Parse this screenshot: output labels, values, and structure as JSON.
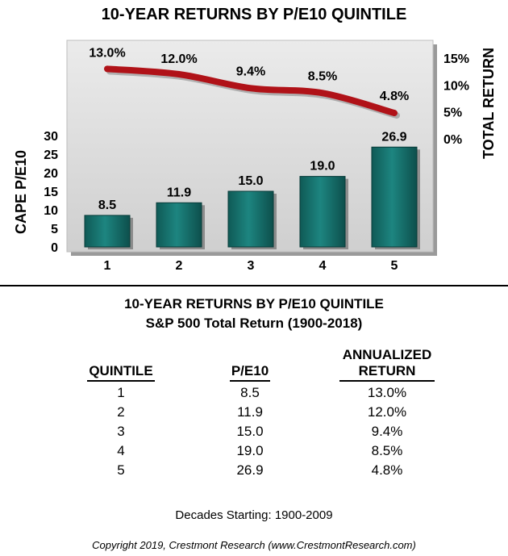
{
  "chart_data": {
    "type": "bar+line",
    "title": "10-YEAR RETURNS BY P/E10 QUINTILE",
    "categories": [
      "1",
      "2",
      "3",
      "4",
      "5"
    ],
    "series": [
      {
        "name": "",
        "kind": "bar",
        "axis": "left",
        "values": [
          8.5,
          11.9,
          15.0,
          19.0,
          26.9
        ],
        "labels": [
          "8.5",
          "11.9",
          "15.0",
          "19.0",
          "26.9"
        ]
      },
      {
        "name": "",
        "kind": "line",
        "axis": "right",
        "values": [
          13.0,
          12.0,
          9.4,
          8.5,
          4.8
        ],
        "labels": [
          "13.0%",
          "12.0%",
          "9.4%",
          "8.5%",
          "4.8%"
        ]
      }
    ],
    "ylabel": "CAPE P/E10",
    "y2label": "TOTAL RETURN",
    "ylim": [
      0,
      30
    ],
    "yticks": [
      "0",
      "5",
      "10",
      "15",
      "20",
      "25",
      "30"
    ],
    "y2lim": [
      0,
      15
    ],
    "y2ticks": [
      "0%",
      "5%",
      "10%",
      "15%"
    ],
    "colors": {
      "bar": "#1a7873",
      "bar_dark": "#0d4f4c",
      "line": "#b01218",
      "panel": "#d9d9d9"
    }
  },
  "table": {
    "title": "10-YEAR RETURNS BY P/E10 QUINTILE",
    "subtitle": "S&P 500 Total Return (1900-2018)",
    "headers": {
      "quintile": "QUINTILE",
      "pe10": "P/E10",
      "annualized_line1": "ANNUALIZED",
      "annualized_line2": "RETURN"
    },
    "rows": [
      [
        "1",
        "8.5",
        "13.0%"
      ],
      [
        "2",
        "11.9",
        "12.0%"
      ],
      [
        "3",
        "15.0",
        "9.4%"
      ],
      [
        "4",
        "19.0",
        "8.5%"
      ],
      [
        "5",
        "26.9",
        "4.8%"
      ]
    ]
  },
  "footnote": "Decades Starting: 1900-2009",
  "copyright": "Copyright 2019, Crestmont Research (www.CrestmontResearch.com)"
}
